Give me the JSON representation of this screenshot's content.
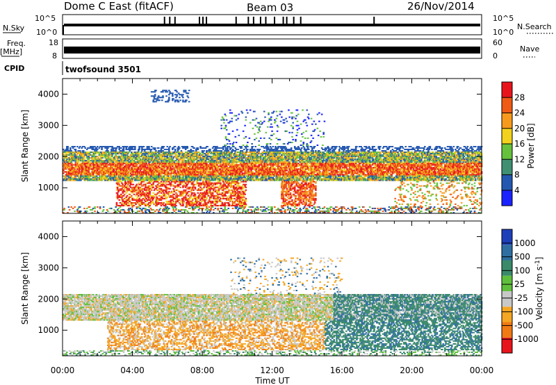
{
  "header": {
    "title": "Dome C East (fitACF)",
    "beam": "Beam 03",
    "date": "26/Nov/2014"
  },
  "top_panels": {
    "nsky_label": "N.Sky",
    "nsky_ticks": [
      "10^5",
      "10^0"
    ],
    "nsearch_label": "N.Search",
    "freq_label": "Freq.",
    "freq_unit": "[MHz]",
    "freq_ticks": [
      "18",
      "8"
    ],
    "nave_label": "Nave",
    "nave_ticks": [
      "60",
      "0"
    ],
    "cpid_label": "CPID",
    "cpid_value": "twofsound 3501"
  },
  "chart_data": [
    {
      "type": "heatmap",
      "panel": "Power",
      "ylabel": "Slant Range [km]",
      "y_ticks": [
        1000,
        2000,
        3000,
        4000
      ],
      "ylim": [
        180,
        4500
      ],
      "colorbar_label": "Power [dB]",
      "colorbar_ticks": [
        4,
        8,
        12,
        16,
        20,
        24,
        28
      ],
      "colorbar_range": [
        0,
        32
      ],
      "colors": [
        "#1a22ff",
        "#2458b0",
        "#3f8f72",
        "#66c23c",
        "#f2d21c",
        "#f79a1c",
        "#ef5a14",
        "#e8141c"
      ]
    },
    {
      "type": "heatmap",
      "panel": "Velocity",
      "ylabel": "Slant Range [km]",
      "y_ticks": [
        1000,
        2000,
        3000,
        4000
      ],
      "ylim": [
        180,
        4500
      ],
      "colorbar_label": "Velocity [m s^-1]",
      "colorbar_ticks": [
        "1000",
        "500",
        "100",
        "25",
        "-25",
        "-100",
        "-500",
        "-1000"
      ],
      "colors": [
        "#1d3fb8",
        "#2e6ea0",
        "#3a8a6a",
        "#5fbf3c",
        "#c8c8c8",
        "#f5a623",
        "#f07a14",
        "#e8141c"
      ]
    }
  ],
  "x_axis": {
    "label": "Time UT",
    "ticks": [
      "00:00",
      "04:00",
      "08:00",
      "12:00",
      "16:00",
      "20:00",
      "00:00"
    ],
    "range_hours": [
      0,
      24
    ]
  }
}
